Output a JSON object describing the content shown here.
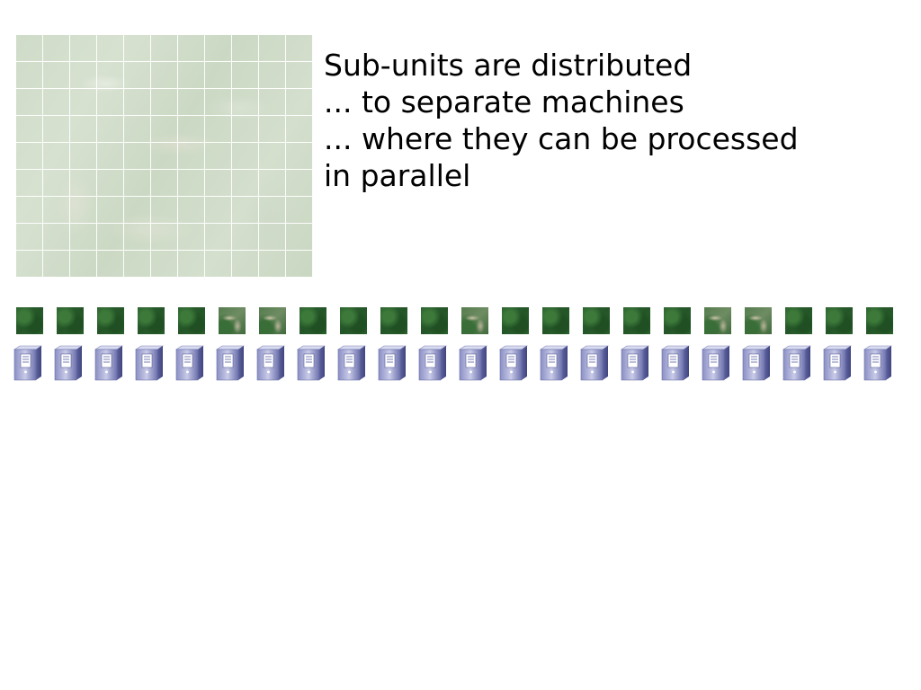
{
  "caption": {
    "line1": "Sub-units are distributed",
    "line2": "... to separate machines",
    "line3": "... where they can be processed",
    "line4": "in parallel"
  },
  "grid": {
    "columns": 11,
    "rows": 9
  },
  "units": {
    "tiles": [
      "dense",
      "dense",
      "dense",
      "dense",
      "dense",
      "mixed",
      "mixed",
      "dense",
      "dense",
      "dense",
      "dense",
      "mixed",
      "dense",
      "dense",
      "dense",
      "dense",
      "dense",
      "mixed",
      "mixed",
      "dense",
      "dense",
      "dense"
    ],
    "server_icon": "server-tower-icon"
  }
}
